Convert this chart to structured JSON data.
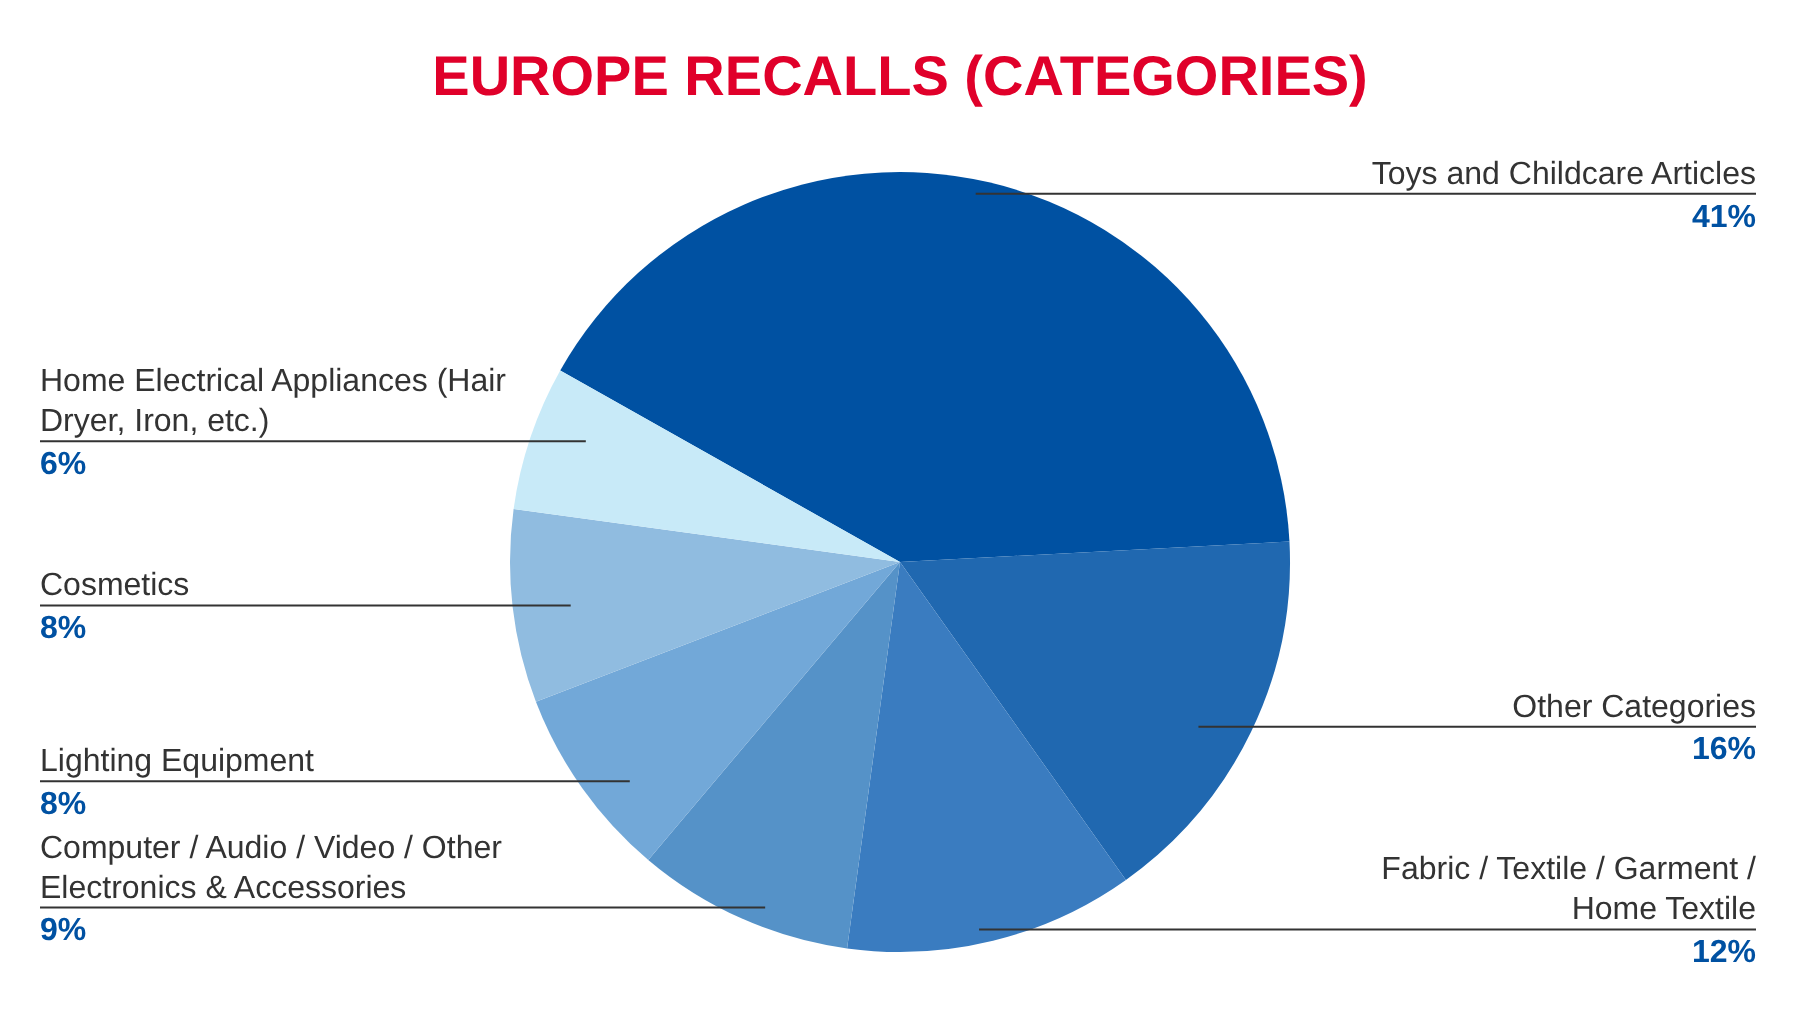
{
  "chart_data": {
    "type": "pie",
    "title": "EUROPE RECALLS (CATEGORIES)",
    "categories": [
      "Toys and Childcare Articles",
      "Other Categories",
      "Fabric / Textile / Garment / Home Textile",
      "Computer / Audio / Video / Other Electronics & Accessories",
      "Lighting Equipment",
      "Cosmetics",
      "Home Electrical Appliances (Hair Dryer, Iron, etc.)"
    ],
    "values": [
      41,
      16,
      12,
      9,
      8,
      8,
      6
    ],
    "value_labels": [
      "41%",
      "16%",
      "12%",
      "9%",
      "8%",
      "8%",
      "6%"
    ],
    "colors": [
      "#0051a2",
      "#2068b0",
      "#3a7cc0",
      "#5592c8",
      "#72a8d8",
      "#90bce0",
      "#c8eaf8"
    ],
    "legend": false
  }
}
